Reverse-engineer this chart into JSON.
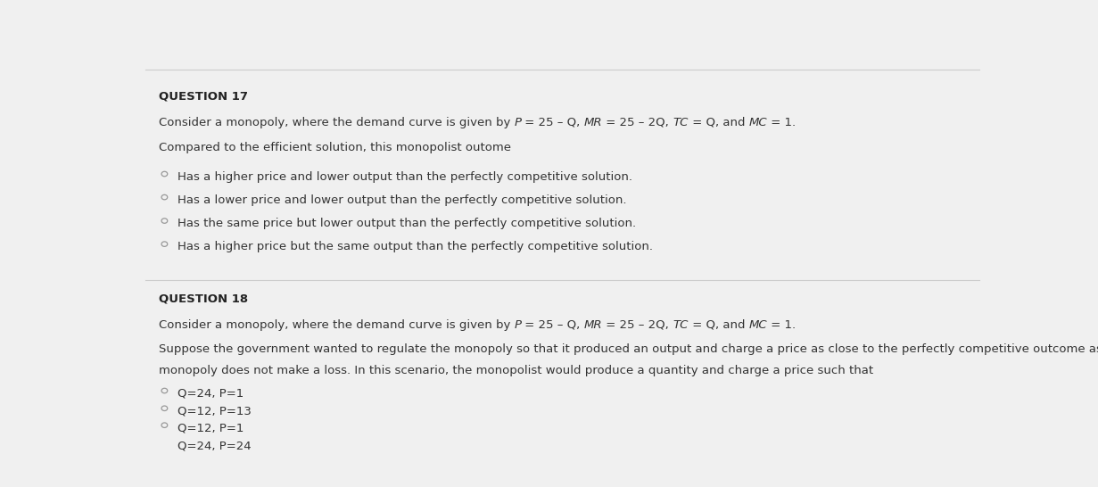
{
  "bg_color": "#f0f0f0",
  "top_line_color": "#cccccc",
  "divider_color": "#cccccc",
  "q17_label": "QUESTION 17",
  "q17_line2": "Compared to the efficient solution, this monopolist outome",
  "q17_options": [
    "Has a higher price and lower output than the perfectly competitive solution.",
    "Has a lower price and lower output than the perfectly competitive solution.",
    "Has the same price but lower output than the perfectly competitive solution.",
    "Has a higher price but the same output than the perfectly competitive solution."
  ],
  "q18_label": "QUESTION 18",
  "q18_line2": "Suppose the government wanted to regulate the monopoly so that it produced an output and charge a price as close to the perfectly competitive outcome as possible, but in such as way so that the",
  "q18_line3": "monopoly does not make a loss. In this scenario, the monopolist would produce a quantity and charge a price such that",
  "q18_options": [
    "Q=24, P=1",
    "Q=12, P=13",
    "Q=12, P=1",
    "Q=24, P=24"
  ],
  "pieces_eq": [
    [
      "Consider a monopoly, where the demand curve is given by ",
      false
    ],
    [
      "P",
      true
    ],
    [
      " = 25 – Q, ",
      false
    ],
    [
      "MR",
      true
    ],
    [
      " = 25 – 2Q, ",
      false
    ],
    [
      "TC",
      true
    ],
    [
      " = Q, and ",
      false
    ],
    [
      "MC",
      true
    ],
    [
      " = 1.",
      false
    ]
  ],
  "text_color": "#333333",
  "label_color": "#222222",
  "option_color": "#333333"
}
